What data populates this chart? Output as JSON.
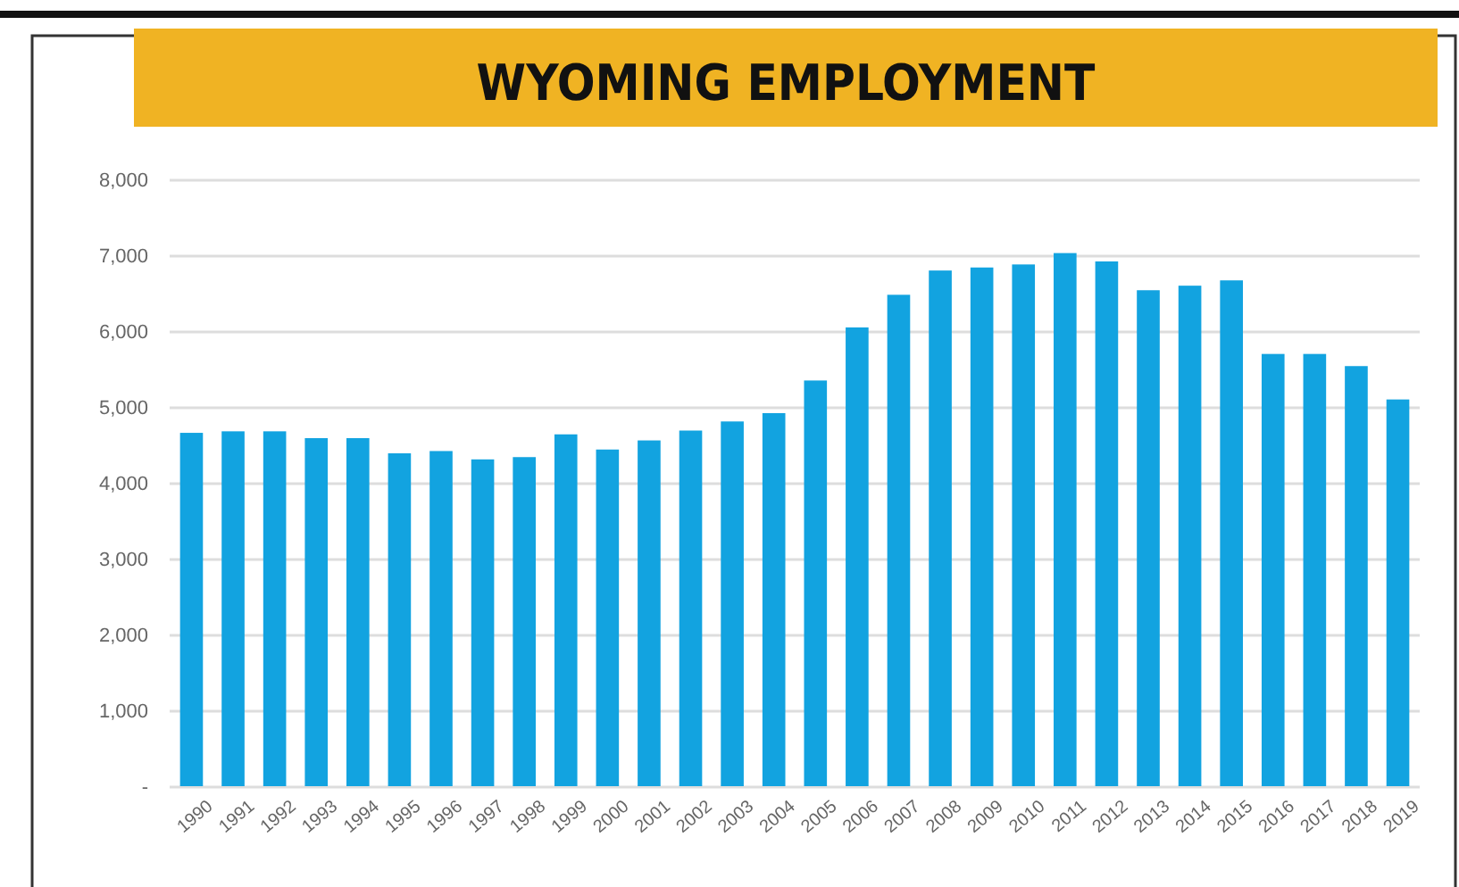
{
  "chart_data": {
    "type": "bar",
    "title": "WYOMING EMPLOYMENT",
    "categories": [
      "1990",
      "1991",
      "1992",
      "1993",
      "1994",
      "1995",
      "1996",
      "1997",
      "1998",
      "1999",
      "2000",
      "2001",
      "2002",
      "2003",
      "2004",
      "2005",
      "2006",
      "2007",
      "2008",
      "2009",
      "2010",
      "2011",
      "2012",
      "2013",
      "2014",
      "2015",
      "2016",
      "2017",
      "2018",
      "2019"
    ],
    "values": [
      4670,
      4690,
      4690,
      4600,
      4600,
      4400,
      4430,
      4320,
      4350,
      4650,
      4450,
      4570,
      4700,
      4820,
      4930,
      5360,
      6060,
      6490,
      6810,
      6850,
      6890,
      7040,
      6930,
      6550,
      6610,
      6680,
      5710,
      5710,
      5550,
      5110
    ],
    "color": "#12a3e0",
    "ylim": [
      0,
      8000
    ],
    "yticks": [
      {
        "value": 0,
        "label": "-"
      },
      {
        "value": 1000,
        "label": "1,000"
      },
      {
        "value": 2000,
        "label": "2,000"
      },
      {
        "value": 3000,
        "label": "3,000"
      },
      {
        "value": 4000,
        "label": "4,000"
      },
      {
        "value": 5000,
        "label": "5,000"
      },
      {
        "value": 6000,
        "label": "6,000"
      },
      {
        "value": 7000,
        "label": "7,000"
      },
      {
        "value": 8000,
        "label": "8,000"
      }
    ],
    "grid": "y"
  }
}
